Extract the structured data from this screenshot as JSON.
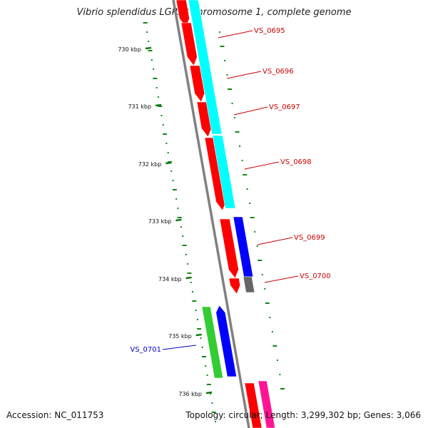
{
  "title": "Vibrio splendidus LGP32 chromosome 1, complete genome",
  "footer": {
    "accession": "Accession: NC_011753",
    "stats": "Topology: circular; Length: 3,299,302 bp; Genes: 3,066"
  },
  "colors": {
    "backbone": "#808080",
    "forward_cds": "#ff0000",
    "reverse_cds": "#0000ff",
    "forward_label": "#cc0000",
    "reverse_label": "#0000cc",
    "cog_cyan": "#00ffff",
    "cog_green": "#33cc33",
    "cog_gray": "#666666",
    "cog_pink": "#ff1493",
    "gc_ticks": "#118811"
  },
  "ruler": [
    "730 kbp",
    "731 kbp",
    "732 kbp",
    "733 kbp",
    "734 kbp",
    "735 kbp",
    "736 kbp"
  ],
  "genes": [
    {
      "name": "VS_0695",
      "strand": "+"
    },
    {
      "name": "VS_0696",
      "strand": "+"
    },
    {
      "name": "VS_0697",
      "strand": "+"
    },
    {
      "name": "VS_0698",
      "strand": "+"
    },
    {
      "name": "VS_0699",
      "strand": "+"
    },
    {
      "name": "VS_0700",
      "strand": "+"
    },
    {
      "name": "VS_0701",
      "strand": "-"
    }
  ]
}
